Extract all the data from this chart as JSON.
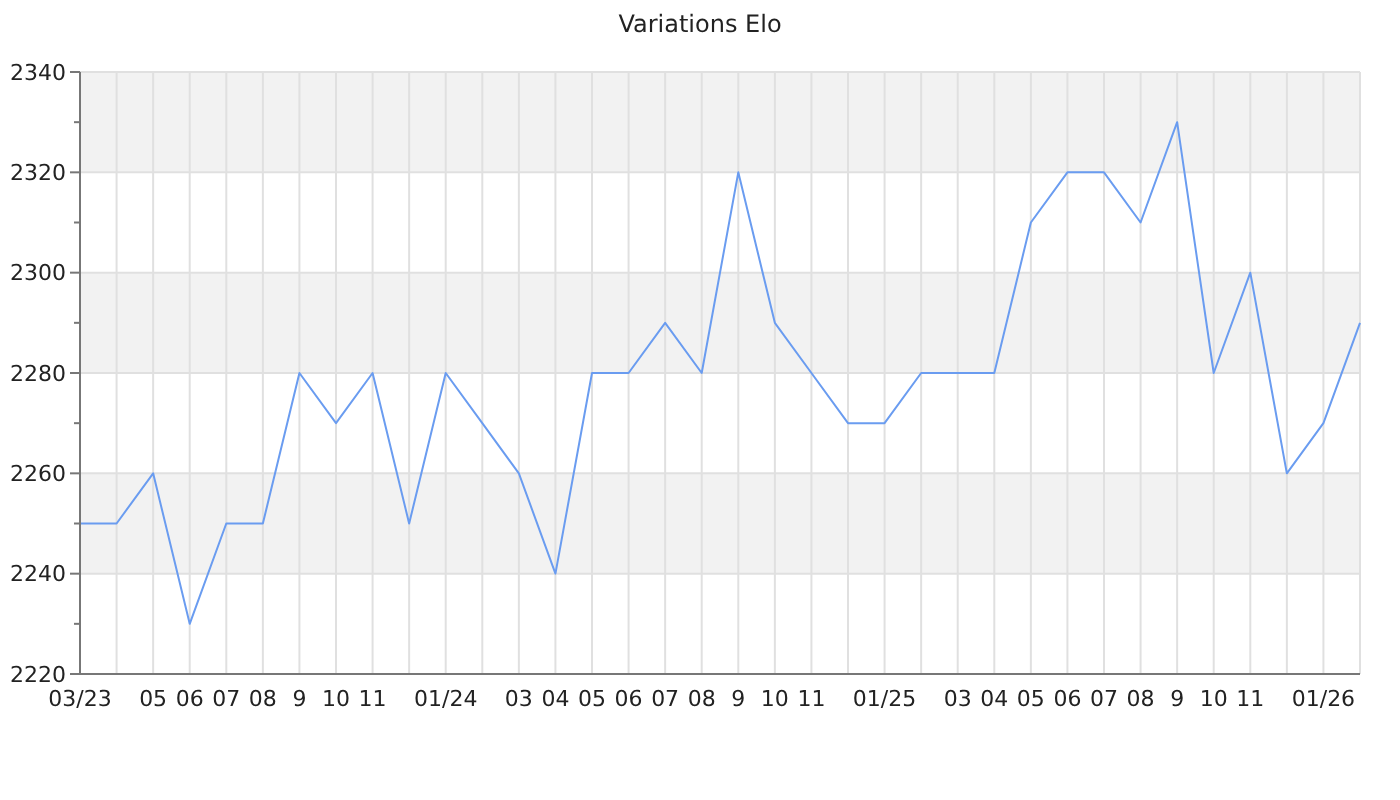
{
  "chart_data": {
    "type": "line",
    "title": "Variations Elo",
    "categories": [
      "03/23",
      null,
      "05",
      "06",
      "07",
      "08",
      "9",
      "10",
      "11",
      null,
      "01/24",
      null,
      "03",
      "04",
      "05",
      "06",
      "07",
      "08",
      "9",
      "10",
      "11",
      null,
      "01/25",
      null,
      "03",
      "04",
      "05",
      "06",
      "07",
      "08",
      "9",
      "10",
      "11",
      null,
      "01/26",
      null
    ],
    "series": [
      {
        "color": "#6a9cf0",
        "values": [
          2250,
          2250,
          2260,
          2230,
          2250,
          2250,
          2280,
          2270,
          2280,
          2250,
          2280,
          2270,
          2260,
          2240,
          2280,
          2280,
          2290,
          2280,
          2320,
          2290,
          2280,
          2270,
          2270,
          2280,
          2280,
          2280,
          2310,
          2320,
          2320,
          2310,
          2330,
          2280,
          2300,
          2260,
          2270,
          2290
        ]
      }
    ],
    "ylim": [
      2220,
      2340
    ],
    "yticks": [
      2220,
      {
        "value": 2230,
        "label": null
      },
      2240,
      {
        "value": 2250,
        "label": null
      },
      2260,
      {
        "value": 2270,
        "label": null
      },
      2280,
      {
        "value": 2290,
        "label": null
      },
      2300,
      {
        "value": 2310,
        "label": null
      },
      2320,
      {
        "value": 2330,
        "label": null
      },
      2340
    ],
    "bands": [
      {
        "axis": "y",
        "from": 2240,
        "to": 2260,
        "color": "#f2f2f2"
      },
      {
        "axis": "y",
        "from": 2280,
        "to": 2300,
        "color": "#f2f2f2"
      },
      {
        "axis": "y",
        "from": 2320,
        "to": 2340,
        "color": "#f2f2f2"
      }
    ],
    "grid": true,
    "marker": "none",
    "line_style": "solid"
  }
}
